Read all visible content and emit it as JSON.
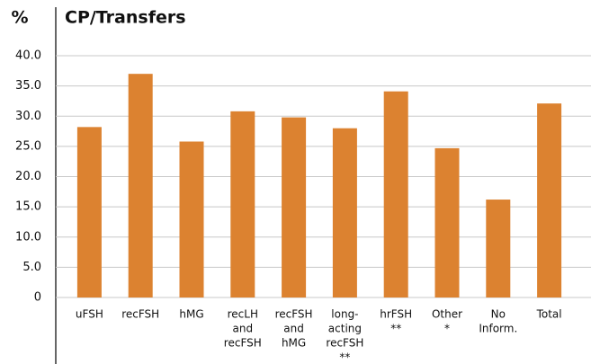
{
  "chart_data": {
    "type": "bar",
    "title": "CP/Transfers",
    "y_label": "%",
    "categories": [
      [
        "uFSH"
      ],
      [
        "recFSH"
      ],
      [
        "hMG"
      ],
      [
        "recLH",
        "and",
        "recFSH"
      ],
      [
        "recFSH",
        "and",
        "hMG"
      ],
      [
        "long-",
        "acting",
        "recFSH",
        "**"
      ],
      [
        "hrFSH",
        "**"
      ],
      [
        "Other",
        "*"
      ],
      [
        "No",
        "Inform."
      ],
      [
        "Total"
      ]
    ],
    "values": [
      28.2,
      37.0,
      25.8,
      30.8,
      29.8,
      28.0,
      34.1,
      24.7,
      16.2,
      32.1
    ],
    "color": "#dc8230",
    "ylim": [
      0,
      40
    ],
    "yticks": [
      0,
      {
        "value": 5,
        "label": "5.0"
      },
      {
        "value": 10,
        "label": "10.0"
      },
      {
        "value": 15,
        "label": "15.0"
      },
      {
        "value": 20,
        "label": "20.0"
      },
      {
        "value": 25,
        "label": "25.0"
      },
      {
        "value": 30,
        "label": "30.0"
      },
      {
        "value": 35,
        "label": "35.0"
      },
      {
        "value": 40,
        "label": "40.0"
      }
    ],
    "grid": true
  }
}
